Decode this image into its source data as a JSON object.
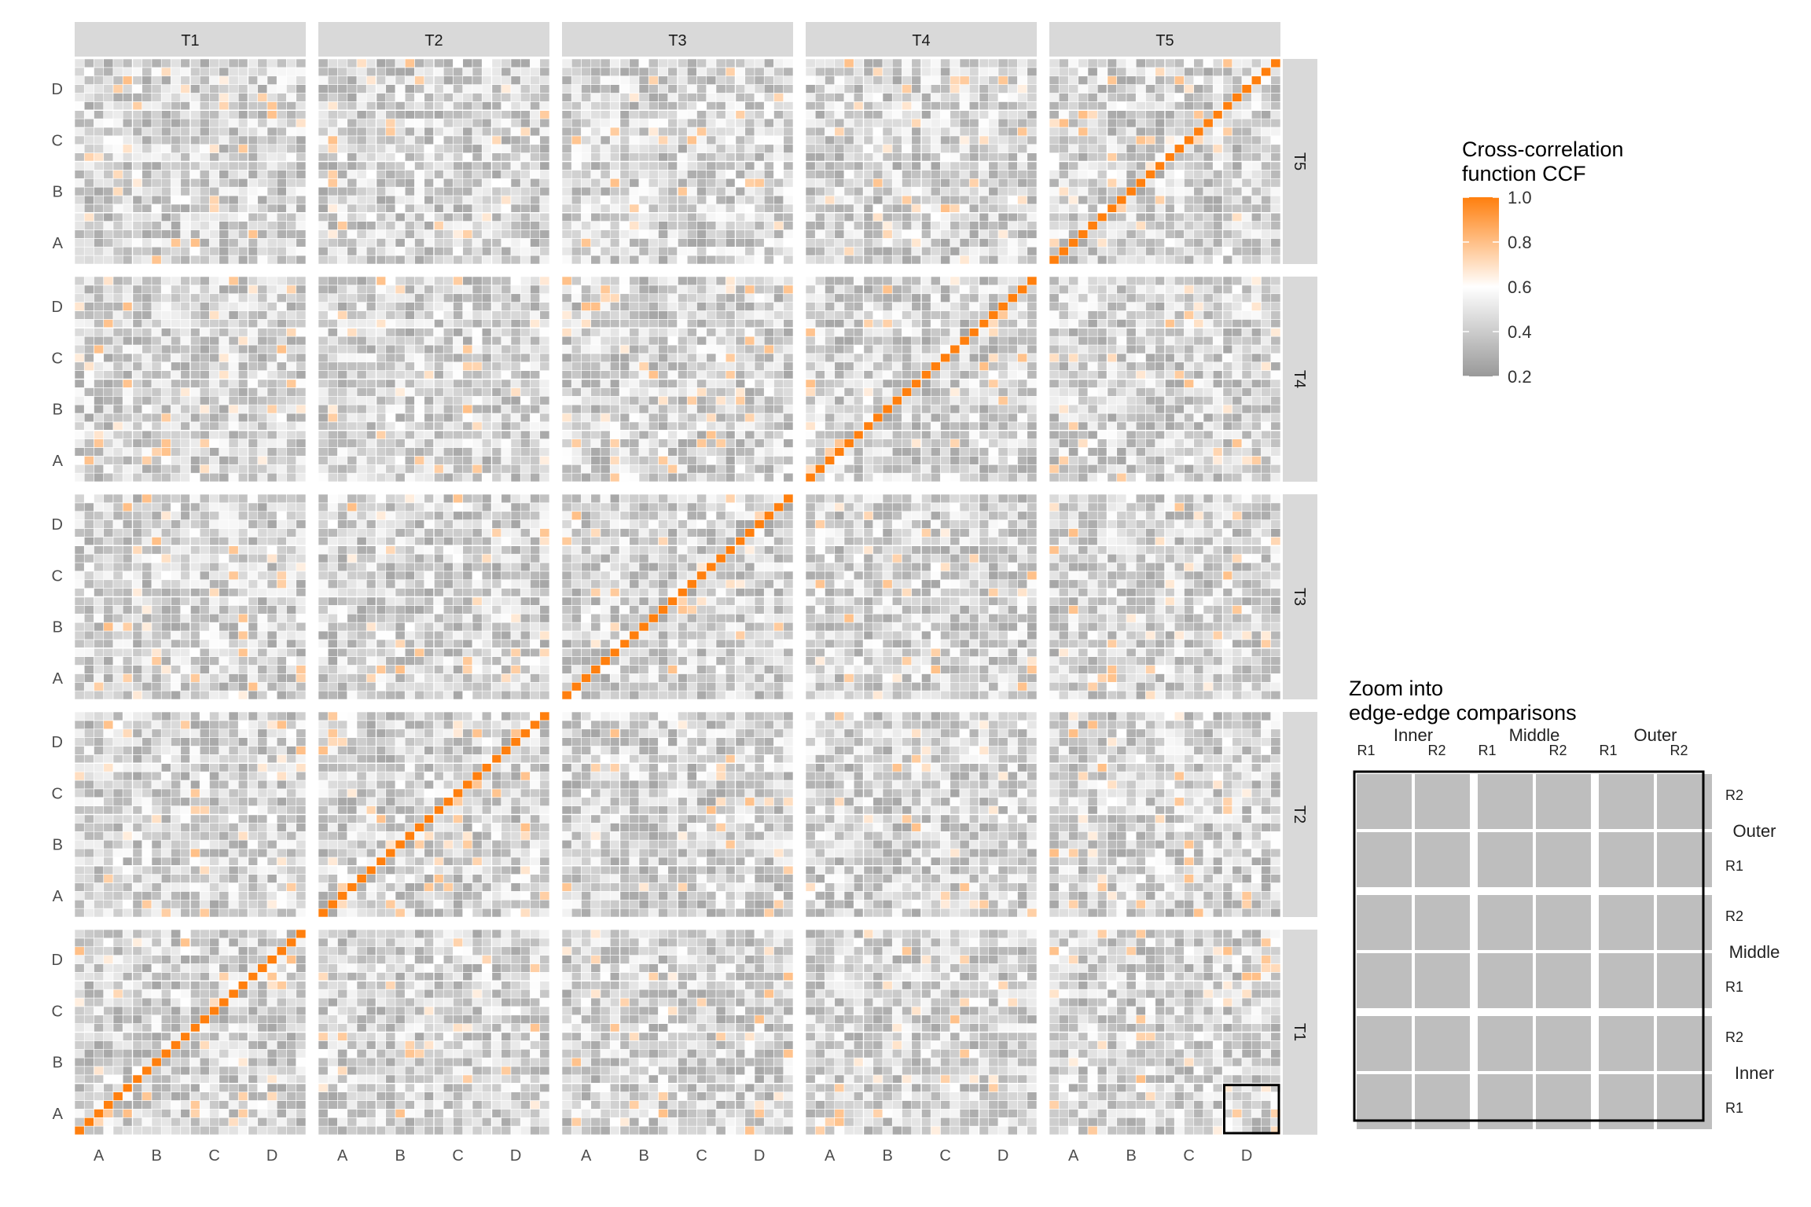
{
  "chart_data": {
    "type": "heatmap",
    "facets": {
      "columns": [
        "T1",
        "T2",
        "T3",
        "T4",
        "T5"
      ],
      "rows": [
        "T5",
        "T4",
        "T3",
        "T2",
        "T1"
      ]
    },
    "x_tick_labels": [
      "A",
      "B",
      "C",
      "D"
    ],
    "y_tick_labels": [
      "A",
      "B",
      "C",
      "D"
    ],
    "cells_per_panel": 24,
    "value_range": [
      0.2,
      1.0
    ],
    "diagonal_value": 1.0,
    "background_value_range": [
      0.25,
      0.6
    ],
    "occasional_high_values": [
      0.65,
      0.8
    ],
    "diagonal_in_panels": "same-treatment (T1-T1, T2-T2, T3-T3, T4-T4, T5-T5)",
    "legend": {
      "title_line1": "Cross-correlation",
      "title_line2": "function CCF",
      "ticks": [
        "1.0",
        "0.8",
        "0.6",
        "0.4",
        "0.2"
      ],
      "colors": {
        "low": "#999999",
        "mid": "#ffffff",
        "high": "#ff7f0e"
      },
      "placement": "right"
    },
    "zoom": {
      "title_line1": "Zoom into",
      "title_line2": "edge-edge comparisons",
      "column_groups": [
        "Inner",
        "Middle",
        "Outer"
      ],
      "row_groups": [
        "Outer",
        "Middle",
        "Inner"
      ],
      "sub_labels": [
        "R1",
        "R2"
      ],
      "row_sub_labels": [
        "R2",
        "R1"
      ],
      "cell_color": "#bebebe"
    },
    "grid": true
  }
}
